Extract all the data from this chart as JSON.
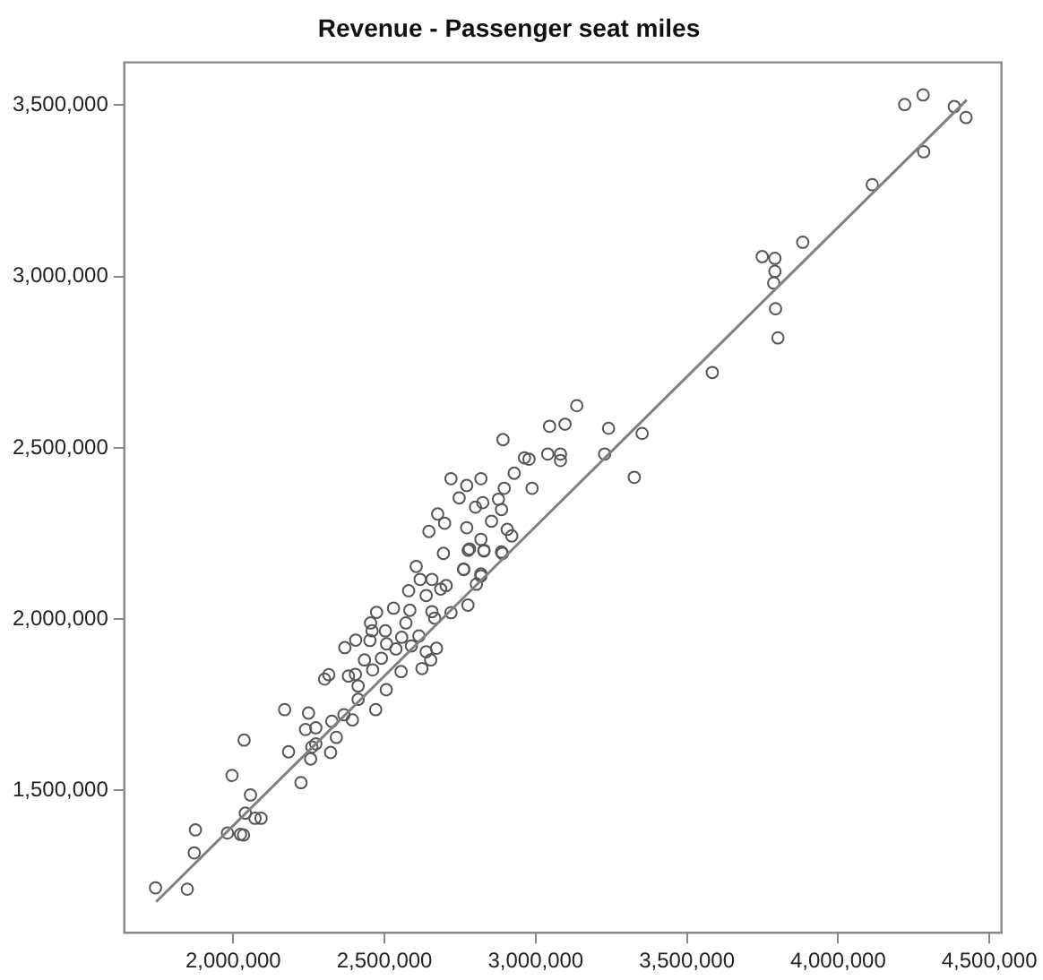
{
  "chart_data": {
    "type": "scatter",
    "title": "Revenue - Passenger seat miles",
    "grid": false,
    "legend": false,
    "xlim": [
      1640000,
      4540000
    ],
    "ylim": [
      1085000,
      3625000
    ],
    "xticks": [
      {
        "value": 2000000,
        "label": "2,000,000"
      },
      {
        "value": 2500000,
        "label": "2,500,000"
      },
      {
        "value": 3000000,
        "label": "3,000,000"
      },
      {
        "value": 3500000,
        "label": "3,500,000"
      },
      {
        "value": 4000000,
        "label": "4,000,000"
      },
      {
        "value": 4500000,
        "label": "4,500,000"
      }
    ],
    "yticks": [
      {
        "value": 1500000,
        "label": "1,500,000"
      },
      {
        "value": 2000000,
        "label": "2,000,000"
      },
      {
        "value": 2500000,
        "label": "2,500,000"
      },
      {
        "value": 3000000,
        "label": "3,000,000"
      },
      {
        "value": 3500000,
        "label": "3,500,000"
      }
    ],
    "series": [
      {
        "marker": "circle",
        "color": "#555555",
        "x": [
          1743000,
          1848000,
          1871000,
          1875000,
          1981000,
          2024000,
          2034000,
          2040000,
          2072000,
          2092000,
          2057000,
          1996000,
          2036000,
          2183000,
          2170000,
          2224000,
          2256000,
          2260000,
          2239000,
          2249000,
          2273000,
          2273000,
          2322000,
          2326000,
          2341000,
          2366000,
          2394000,
          2413000,
          2413000,
          2404000,
          2381000,
          2302000,
          2316000,
          2369000,
          2405000,
          2434000,
          2471000,
          2506000,
          2461000,
          2452000,
          2459000,
          2454000,
          2474000,
          2490000,
          2507000,
          2503000,
          2530000,
          2538000,
          2555000,
          2557000,
          2571000,
          2580000,
          2584000,
          2589000,
          2614000,
          2624000,
          2638000,
          2653000,
          2672000,
          2605000,
          2618000,
          2638000,
          2657000,
          2666000,
          2657000,
          2686000,
          2704000,
          2720000,
          2762000,
          2776000,
          2804000,
          2819000,
          2777000,
          2829000,
          2890000,
          2695000,
          3883000,
          3749000,
          3791000,
          3791000,
          3787000,
          3793000,
          3801000,
          3584000,
          3136000,
          3241000,
          3352000,
          3228000,
          3326000,
          3097000,
          3046000,
          3040000,
          3082000,
          3082000,
          2963000,
          2978000,
          2892000,
          2929000,
          2988000,
          2896000,
          2720000,
          2772000,
          2819000,
          2747000,
          2801000,
          2825000,
          2877000,
          2887000,
          2854000,
          2906000,
          2921000,
          2887000,
          2676000,
          2699000,
          2647000,
          2772000,
          2781000,
          2819000,
          2829000,
          2762000,
          2819000,
          4220000,
          4281000,
          4384000,
          4423000,
          4283000,
          4113000
        ],
        "values": [
          1216000,
          1212000,
          1318000,
          1385000,
          1376000,
          1372000,
          1370000,
          1434000,
          1419000,
          1419000,
          1487000,
          1544000,
          1647000,
          1613000,
          1736000,
          1523000,
          1592000,
          1627000,
          1678000,
          1726000,
          1683000,
          1636000,
          1611000,
          1702000,
          1655000,
          1721000,
          1706000,
          1766000,
          1805000,
          1839000,
          1834000,
          1825000,
          1838000,
          1917000,
          1939000,
          1881000,
          1736000,
          1794000,
          1852000,
          1938000,
          1966000,
          1989000,
          2020000,
          1886000,
          1928000,
          1966000,
          2032000,
          1913000,
          1847000,
          1947000,
          1989000,
          2083000,
          2026000,
          1922000,
          1951000,
          1856000,
          1905000,
          1881000,
          1915000,
          2154000,
          2116000,
          2069000,
          2022000,
          2003000,
          2116000,
          2088000,
          2098000,
          2019000,
          2145000,
          2041000,
          2102000,
          2126000,
          2201000,
          2201000,
          2192000,
          2192000,
          3100000,
          3058000,
          3053000,
          3015000,
          2981000,
          2906000,
          2821000,
          2720000,
          2623000,
          2557000,
          2542000,
          2482000,
          2414000,
          2569000,
          2563000,
          2482000,
          2482000,
          2463000,
          2471000,
          2467000,
          2524000,
          2426000,
          2382000,
          2382000,
          2410000,
          2390000,
          2410000,
          2354000,
          2327000,
          2340000,
          2350000,
          2320000,
          2286000,
          2262000,
          2243000,
          2196000,
          2307000,
          2280000,
          2256000,
          2267000,
          2205000,
          2233000,
          2199000,
          2146000,
          2132000,
          3502000,
          3530000,
          3496000,
          3464000,
          3364000,
          3268000
        ]
      },
      {
        "type": "line",
        "color": "#808080",
        "x": [
          1745000,
          4425000
        ],
        "values": [
          1175000,
          3515000
        ]
      }
    ]
  }
}
